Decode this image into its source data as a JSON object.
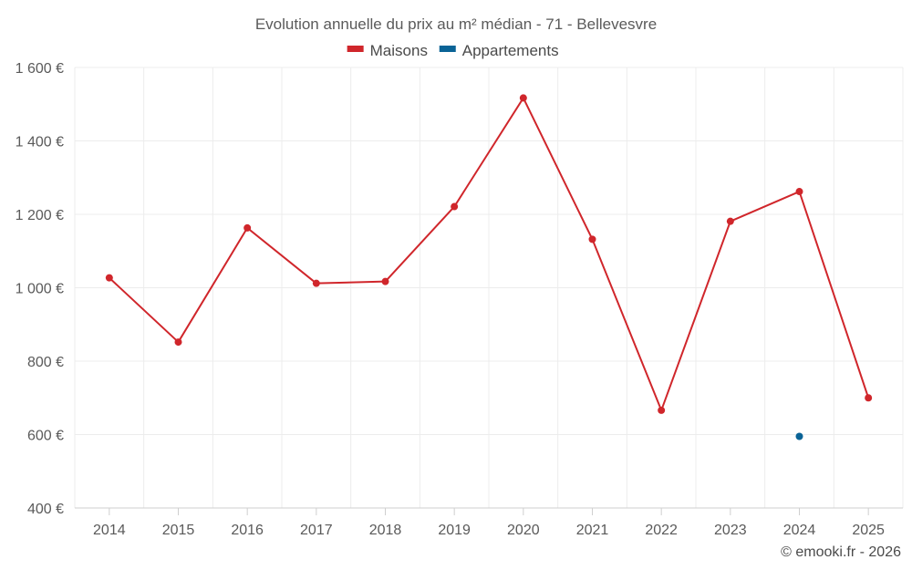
{
  "chart_data": {
    "type": "line",
    "title": "Evolution annuelle du prix au m² médian - 71 - Bellevesvre",
    "categories": [
      "2014",
      "2015",
      "2016",
      "2017",
      "2018",
      "2019",
      "2020",
      "2021",
      "2022",
      "2023",
      "2024",
      "2025"
    ],
    "series": [
      {
        "name": "Maisons",
        "color": "#d0262b",
        "values": [
          1027,
          852,
          1163,
          1012,
          1017,
          1221,
          1517,
          1132,
          666,
          1181,
          1262,
          700
        ]
      },
      {
        "name": "Appartements",
        "color": "#0a6396",
        "values": [
          null,
          null,
          null,
          null,
          null,
          null,
          null,
          null,
          null,
          null,
          595,
          null
        ]
      }
    ],
    "ylim": [
      400,
      1600
    ],
    "yticks": [
      400,
      600,
      800,
      1000,
      1200,
      1400,
      1600
    ],
    "ytick_labels": [
      "400 €",
      "600 €",
      "800 €",
      "1 000 €",
      "1 200 €",
      "1 400 €",
      "1 600 €"
    ],
    "grid": true,
    "legend_position": "top-center",
    "xlabel": "",
    "ylabel": ""
  },
  "credit": "© emooki.fr - 2026"
}
